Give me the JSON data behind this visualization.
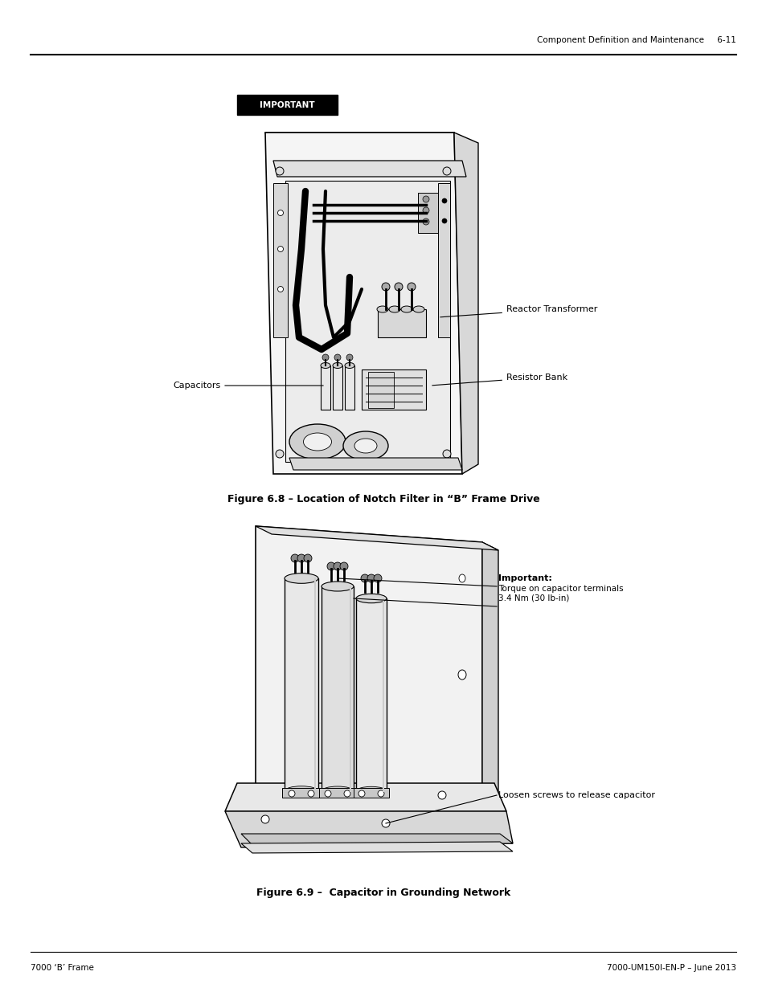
{
  "page_width": 9.54,
  "page_height": 12.35,
  "bg_color": "#ffffff",
  "header_text": "Component Definition and Maintenance",
  "header_page": "6-11",
  "footer_left": "7000 ‘B’ Frame",
  "footer_right": "7000-UM150I-EN-P – June 2013",
  "important_label": "IMPORTANT",
  "fig1_caption": "Figure 6.8 – Location of Notch Filter in “B” Frame Drive",
  "fig2_caption": "Figure 6.9 –  Capacitor in Grounding Network",
  "label_reactor": "Reactor Transformer",
  "label_resistor": "Resistor Bank",
  "label_capacitors": "Capacitors",
  "label_important2": "Important:",
  "label_torque": "Torque on capacitor terminals\n3.4 Nm (30 lb-in)",
  "label_loosen": "Loosen screws to release capacitor"
}
